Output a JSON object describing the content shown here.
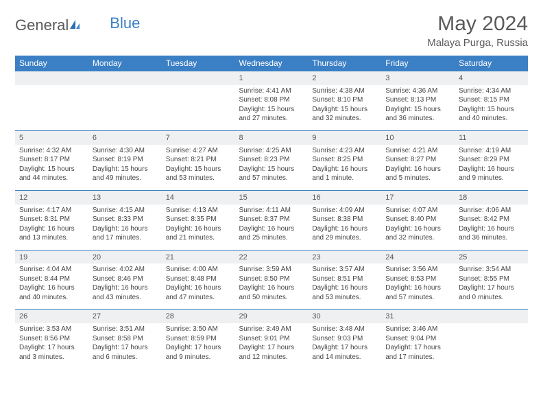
{
  "logo": {
    "text1": "General",
    "text2": "Blue"
  },
  "title": "May 2024",
  "location": "Malaya Purga, Russia",
  "colors": {
    "header_bg": "#3b7fc4",
    "header_text": "#ffffff",
    "daynum_bg": "#eef0f2",
    "border": "#3b7fc4",
    "body_text": "#444444",
    "title_text": "#5a5a5a"
  },
  "daysOfWeek": [
    "Sunday",
    "Monday",
    "Tuesday",
    "Wednesday",
    "Thursday",
    "Friday",
    "Saturday"
  ],
  "weeks": [
    [
      {
        "n": "",
        "lines": []
      },
      {
        "n": "",
        "lines": []
      },
      {
        "n": "",
        "lines": []
      },
      {
        "n": "1",
        "lines": [
          "Sunrise: 4:41 AM",
          "Sunset: 8:08 PM",
          "Daylight: 15 hours",
          "and 27 minutes."
        ]
      },
      {
        "n": "2",
        "lines": [
          "Sunrise: 4:38 AM",
          "Sunset: 8:10 PM",
          "Daylight: 15 hours",
          "and 32 minutes."
        ]
      },
      {
        "n": "3",
        "lines": [
          "Sunrise: 4:36 AM",
          "Sunset: 8:13 PM",
          "Daylight: 15 hours",
          "and 36 minutes."
        ]
      },
      {
        "n": "4",
        "lines": [
          "Sunrise: 4:34 AM",
          "Sunset: 8:15 PM",
          "Daylight: 15 hours",
          "and 40 minutes."
        ]
      }
    ],
    [
      {
        "n": "5",
        "lines": [
          "Sunrise: 4:32 AM",
          "Sunset: 8:17 PM",
          "Daylight: 15 hours",
          "and 44 minutes."
        ]
      },
      {
        "n": "6",
        "lines": [
          "Sunrise: 4:30 AM",
          "Sunset: 8:19 PM",
          "Daylight: 15 hours",
          "and 49 minutes."
        ]
      },
      {
        "n": "7",
        "lines": [
          "Sunrise: 4:27 AM",
          "Sunset: 8:21 PM",
          "Daylight: 15 hours",
          "and 53 minutes."
        ]
      },
      {
        "n": "8",
        "lines": [
          "Sunrise: 4:25 AM",
          "Sunset: 8:23 PM",
          "Daylight: 15 hours",
          "and 57 minutes."
        ]
      },
      {
        "n": "9",
        "lines": [
          "Sunrise: 4:23 AM",
          "Sunset: 8:25 PM",
          "Daylight: 16 hours",
          "and 1 minute."
        ]
      },
      {
        "n": "10",
        "lines": [
          "Sunrise: 4:21 AM",
          "Sunset: 8:27 PM",
          "Daylight: 16 hours",
          "and 5 minutes."
        ]
      },
      {
        "n": "11",
        "lines": [
          "Sunrise: 4:19 AM",
          "Sunset: 8:29 PM",
          "Daylight: 16 hours",
          "and 9 minutes."
        ]
      }
    ],
    [
      {
        "n": "12",
        "lines": [
          "Sunrise: 4:17 AM",
          "Sunset: 8:31 PM",
          "Daylight: 16 hours",
          "and 13 minutes."
        ]
      },
      {
        "n": "13",
        "lines": [
          "Sunrise: 4:15 AM",
          "Sunset: 8:33 PM",
          "Daylight: 16 hours",
          "and 17 minutes."
        ]
      },
      {
        "n": "14",
        "lines": [
          "Sunrise: 4:13 AM",
          "Sunset: 8:35 PM",
          "Daylight: 16 hours",
          "and 21 minutes."
        ]
      },
      {
        "n": "15",
        "lines": [
          "Sunrise: 4:11 AM",
          "Sunset: 8:37 PM",
          "Daylight: 16 hours",
          "and 25 minutes."
        ]
      },
      {
        "n": "16",
        "lines": [
          "Sunrise: 4:09 AM",
          "Sunset: 8:38 PM",
          "Daylight: 16 hours",
          "and 29 minutes."
        ]
      },
      {
        "n": "17",
        "lines": [
          "Sunrise: 4:07 AM",
          "Sunset: 8:40 PM",
          "Daylight: 16 hours",
          "and 32 minutes."
        ]
      },
      {
        "n": "18",
        "lines": [
          "Sunrise: 4:06 AM",
          "Sunset: 8:42 PM",
          "Daylight: 16 hours",
          "and 36 minutes."
        ]
      }
    ],
    [
      {
        "n": "19",
        "lines": [
          "Sunrise: 4:04 AM",
          "Sunset: 8:44 PM",
          "Daylight: 16 hours",
          "and 40 minutes."
        ]
      },
      {
        "n": "20",
        "lines": [
          "Sunrise: 4:02 AM",
          "Sunset: 8:46 PM",
          "Daylight: 16 hours",
          "and 43 minutes."
        ]
      },
      {
        "n": "21",
        "lines": [
          "Sunrise: 4:00 AM",
          "Sunset: 8:48 PM",
          "Daylight: 16 hours",
          "and 47 minutes."
        ]
      },
      {
        "n": "22",
        "lines": [
          "Sunrise: 3:59 AM",
          "Sunset: 8:50 PM",
          "Daylight: 16 hours",
          "and 50 minutes."
        ]
      },
      {
        "n": "23",
        "lines": [
          "Sunrise: 3:57 AM",
          "Sunset: 8:51 PM",
          "Daylight: 16 hours",
          "and 53 minutes."
        ]
      },
      {
        "n": "24",
        "lines": [
          "Sunrise: 3:56 AM",
          "Sunset: 8:53 PM",
          "Daylight: 16 hours",
          "and 57 minutes."
        ]
      },
      {
        "n": "25",
        "lines": [
          "Sunrise: 3:54 AM",
          "Sunset: 8:55 PM",
          "Daylight: 17 hours",
          "and 0 minutes."
        ]
      }
    ],
    [
      {
        "n": "26",
        "lines": [
          "Sunrise: 3:53 AM",
          "Sunset: 8:56 PM",
          "Daylight: 17 hours",
          "and 3 minutes."
        ]
      },
      {
        "n": "27",
        "lines": [
          "Sunrise: 3:51 AM",
          "Sunset: 8:58 PM",
          "Daylight: 17 hours",
          "and 6 minutes."
        ]
      },
      {
        "n": "28",
        "lines": [
          "Sunrise: 3:50 AM",
          "Sunset: 8:59 PM",
          "Daylight: 17 hours",
          "and 9 minutes."
        ]
      },
      {
        "n": "29",
        "lines": [
          "Sunrise: 3:49 AM",
          "Sunset: 9:01 PM",
          "Daylight: 17 hours",
          "and 12 minutes."
        ]
      },
      {
        "n": "30",
        "lines": [
          "Sunrise: 3:48 AM",
          "Sunset: 9:03 PM",
          "Daylight: 17 hours",
          "and 14 minutes."
        ]
      },
      {
        "n": "31",
        "lines": [
          "Sunrise: 3:46 AM",
          "Sunset: 9:04 PM",
          "Daylight: 17 hours",
          "and 17 minutes."
        ]
      },
      {
        "n": "",
        "lines": []
      }
    ]
  ]
}
